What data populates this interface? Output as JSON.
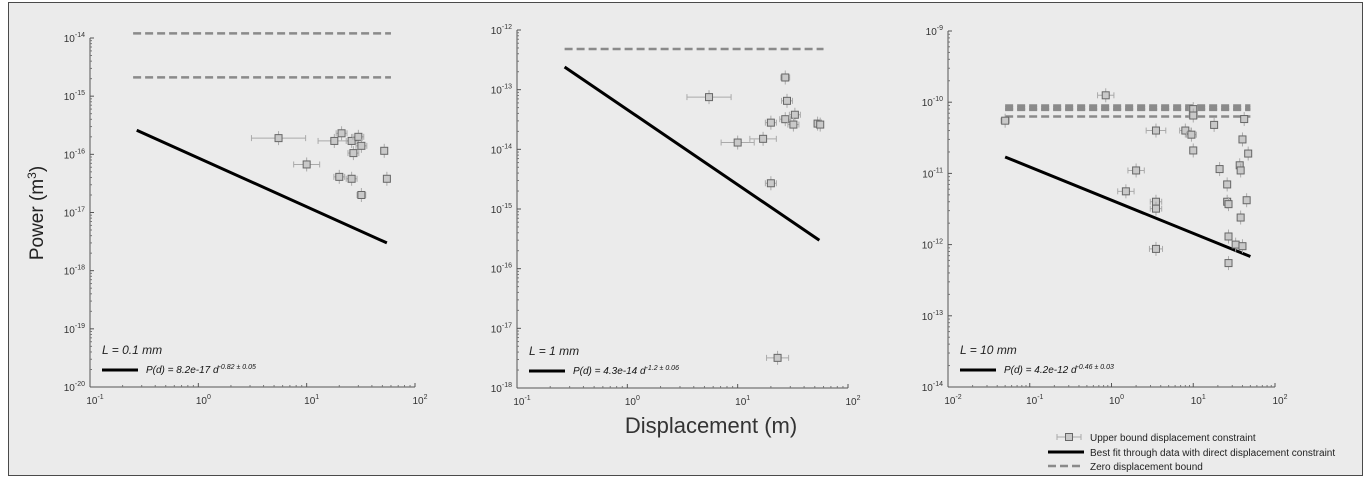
{
  "chart_data": {
    "type": "scatter",
    "ylabel": "Power (m",
    "ylabel_sup": "3",
    "ylabel_close": ")",
    "xlabel": "Displacement (m)",
    "legend": {
      "placement": "bottom-right",
      "entries": [
        {
          "key": "upper",
          "label": "Upper bound displacement constraint"
        },
        {
          "key": "fit",
          "label": "Best fit through data with direct displacement constraint"
        },
        {
          "key": "zero",
          "label": "Zero displacement bound"
        }
      ]
    },
    "colors": {
      "points": "#777777",
      "fit": "#000000",
      "zero": "#8a8a8a",
      "background": "#ebebeb"
    },
    "panels": [
      {
        "id": "p1",
        "x_log_range": [
          -1,
          2
        ],
        "y_log_range": [
          -20,
          -14
        ],
        "x_ticks": [
          -1,
          0,
          1,
          2
        ],
        "y_ticks": [
          -20,
          -19,
          -18,
          -17,
          -16,
          -15,
          -14
        ],
        "annotation": "L = 0.1 mm",
        "fit_label": {
          "prefix": "P(d) = 8.2e-17 d",
          "exponent": "-0.82 ± 0.05"
        },
        "fit": {
          "x0": 0.27,
          "x1": 55,
          "y0": 2.6e-16,
          "y1": 3e-18
        },
        "zero_bounds": [
          1.2e-14,
          2.1e-15
        ],
        "zero_x": [
          0.25,
          60
        ],
        "points": [
          {
            "x": 5.5,
            "y": 1.9e-16,
            "xerr": 0.25
          },
          {
            "x": 10,
            "y": 6.7e-17,
            "xerr": 0.12
          },
          {
            "x": 18,
            "y": 1.7e-16,
            "xerr": 0.15
          },
          {
            "x": 21,
            "y": 2.3e-16,
            "xerr": 0.05
          },
          {
            "x": 20,
            "y": 4.1e-17,
            "xerr": 0.05
          },
          {
            "x": 26,
            "y": 1.7e-16,
            "xerr": 0.05
          },
          {
            "x": 27,
            "y": 1.05e-16,
            "xerr": 0.05
          },
          {
            "x": 26,
            "y": 3.8e-17,
            "xerr": 0.05
          },
          {
            "x": 30,
            "y": 2e-16,
            "xerr": 0.05
          },
          {
            "x": 32,
            "y": 1.4e-16,
            "xerr": 0.05
          },
          {
            "x": 32,
            "y": 2e-17,
            "xerr": 0.04
          },
          {
            "x": 52,
            "y": 1.15e-16,
            "xerr": 0.03
          },
          {
            "x": 55,
            "y": 3.8e-17,
            "xerr": 0.03
          }
        ]
      },
      {
        "id": "p2",
        "x_log_range": [
          -1,
          2
        ],
        "y_log_range": [
          -18,
          -12
        ],
        "x_ticks": [
          -1,
          0,
          1,
          2
        ],
        "y_ticks": [
          -18,
          -17,
          -16,
          -15,
          -14,
          -13,
          -12
        ],
        "annotation": "L = 1 mm",
        "fit_label": {
          "prefix": "P(d) = 4.3e-14 d",
          "exponent": "-1.2 ± 0.06"
        },
        "fit": {
          "x0": 0.27,
          "x1": 55,
          "y0": 2.4e-13,
          "y1": 3e-16
        },
        "zero_bounds": [
          4.8e-13
        ],
        "zero_x": [
          0.27,
          60
        ],
        "points": [
          {
            "x": 5.5,
            "y": 7.5e-14,
            "xerr": 0.2
          },
          {
            "x": 10,
            "y": 1.3e-14,
            "xerr": 0.15
          },
          {
            "x": 17,
            "y": 1.5e-14,
            "xerr": 0.12
          },
          {
            "x": 20,
            "y": 2.8e-14,
            "xerr": 0.05
          },
          {
            "x": 20,
            "y": 2.7e-15,
            "xerr": 0.05
          },
          {
            "x": 27,
            "y": 1.6e-13,
            "xerr": 0.04
          },
          {
            "x": 28,
            "y": 6.5e-14,
            "xerr": 0.05
          },
          {
            "x": 27,
            "y": 3.2e-14,
            "xerr": 0.05
          },
          {
            "x": 33,
            "y": 3.8e-14,
            "xerr": 0.05
          },
          {
            "x": 32,
            "y": 2.6e-14,
            "xerr": 0.05
          },
          {
            "x": 53,
            "y": 2.7e-14,
            "xerr": 0.03
          },
          {
            "x": 56,
            "y": 2.6e-14,
            "xerr": 0.03
          },
          {
            "x": 23,
            "y": 3.2e-18,
            "xerr": 0.1
          }
        ]
      },
      {
        "id": "p3",
        "x_log_range": [
          -2,
          2
        ],
        "y_log_range": [
          -14,
          -9
        ],
        "x_ticks": [
          -2,
          -1,
          0,
          1,
          2
        ],
        "y_ticks": [
          -14,
          -13,
          -12,
          -11,
          -10,
          -9
        ],
        "annotation": "L = 10 mm",
        "fit_label": {
          "prefix": "P(d) = 4.2e-12 d",
          "exponent": "-0.46 ± 0.03"
        },
        "fit": {
          "x0": 0.05,
          "x1": 50,
          "y0": 1.7e-11,
          "y1": 6.8e-13
        },
        "zero_bounds": [
          9e-11,
          8.5e-11,
          8e-11,
          7.8e-11,
          6.3e-11
        ],
        "zero_x": [
          0.05,
          50
        ],
        "points": [
          {
            "x": 0.05,
            "y": 5.5e-11,
            "xerr": 0.05
          },
          {
            "x": 0.85,
            "y": 1.25e-10,
            "xerr": 0.1
          },
          {
            "x": 1.5,
            "y": 5.6e-12,
            "xerr": 0.1
          },
          {
            "x": 2.0,
            "y": 1.1e-11,
            "xerr": 0.1
          },
          {
            "x": 3.5,
            "y": 4e-11,
            "xerr": 0.12
          },
          {
            "x": 3.5,
            "y": 4e-12,
            "xerr": 0.07
          },
          {
            "x": 3.5,
            "y": 3.2e-12,
            "xerr": 0.07
          },
          {
            "x": 3.5,
            "y": 8.7e-13,
            "xerr": 0.08
          },
          {
            "x": 8,
            "y": 4e-11,
            "xerr": 0.07
          },
          {
            "x": 9.5,
            "y": 3.5e-11,
            "xerr": 0.06
          },
          {
            "x": 10,
            "y": 8e-11,
            "xerr": 0.05
          },
          {
            "x": 10,
            "y": 6.5e-11,
            "xerr": 0.05
          },
          {
            "x": 10,
            "y": 2.1e-11,
            "xerr": 0.04
          },
          {
            "x": 18,
            "y": 4.8e-11,
            "xerr": 0.03
          },
          {
            "x": 21,
            "y": 1.15e-11,
            "xerr": 0.03
          },
          {
            "x": 26,
            "y": 7e-12,
            "xerr": 0.03
          },
          {
            "x": 26,
            "y": 4e-12,
            "xerr": 0.03
          },
          {
            "x": 27,
            "y": 3.7e-12,
            "xerr": 0.03
          },
          {
            "x": 27,
            "y": 1.3e-12,
            "xerr": 0.03
          },
          {
            "x": 27,
            "y": 5.5e-13,
            "xerr": 0.03
          },
          {
            "x": 33,
            "y": 1e-12,
            "xerr": 0.03
          },
          {
            "x": 37,
            "y": 1.3e-11,
            "xerr": 0.03
          },
          {
            "x": 38,
            "y": 1.1e-11,
            "xerr": 0.03
          },
          {
            "x": 38,
            "y": 2.4e-12,
            "xerr": 0.03
          },
          {
            "x": 40,
            "y": 3e-11,
            "xerr": 0.03
          },
          {
            "x": 42,
            "y": 5.8e-11,
            "xerr": 0.03
          },
          {
            "x": 45,
            "y": 4.2e-12,
            "xerr": 0.03
          },
          {
            "x": 47,
            "y": 1.9e-11,
            "xerr": 0.03
          },
          {
            "x": 40,
            "y": 9.5e-13,
            "xerr": 0.03
          }
        ]
      }
    ]
  }
}
